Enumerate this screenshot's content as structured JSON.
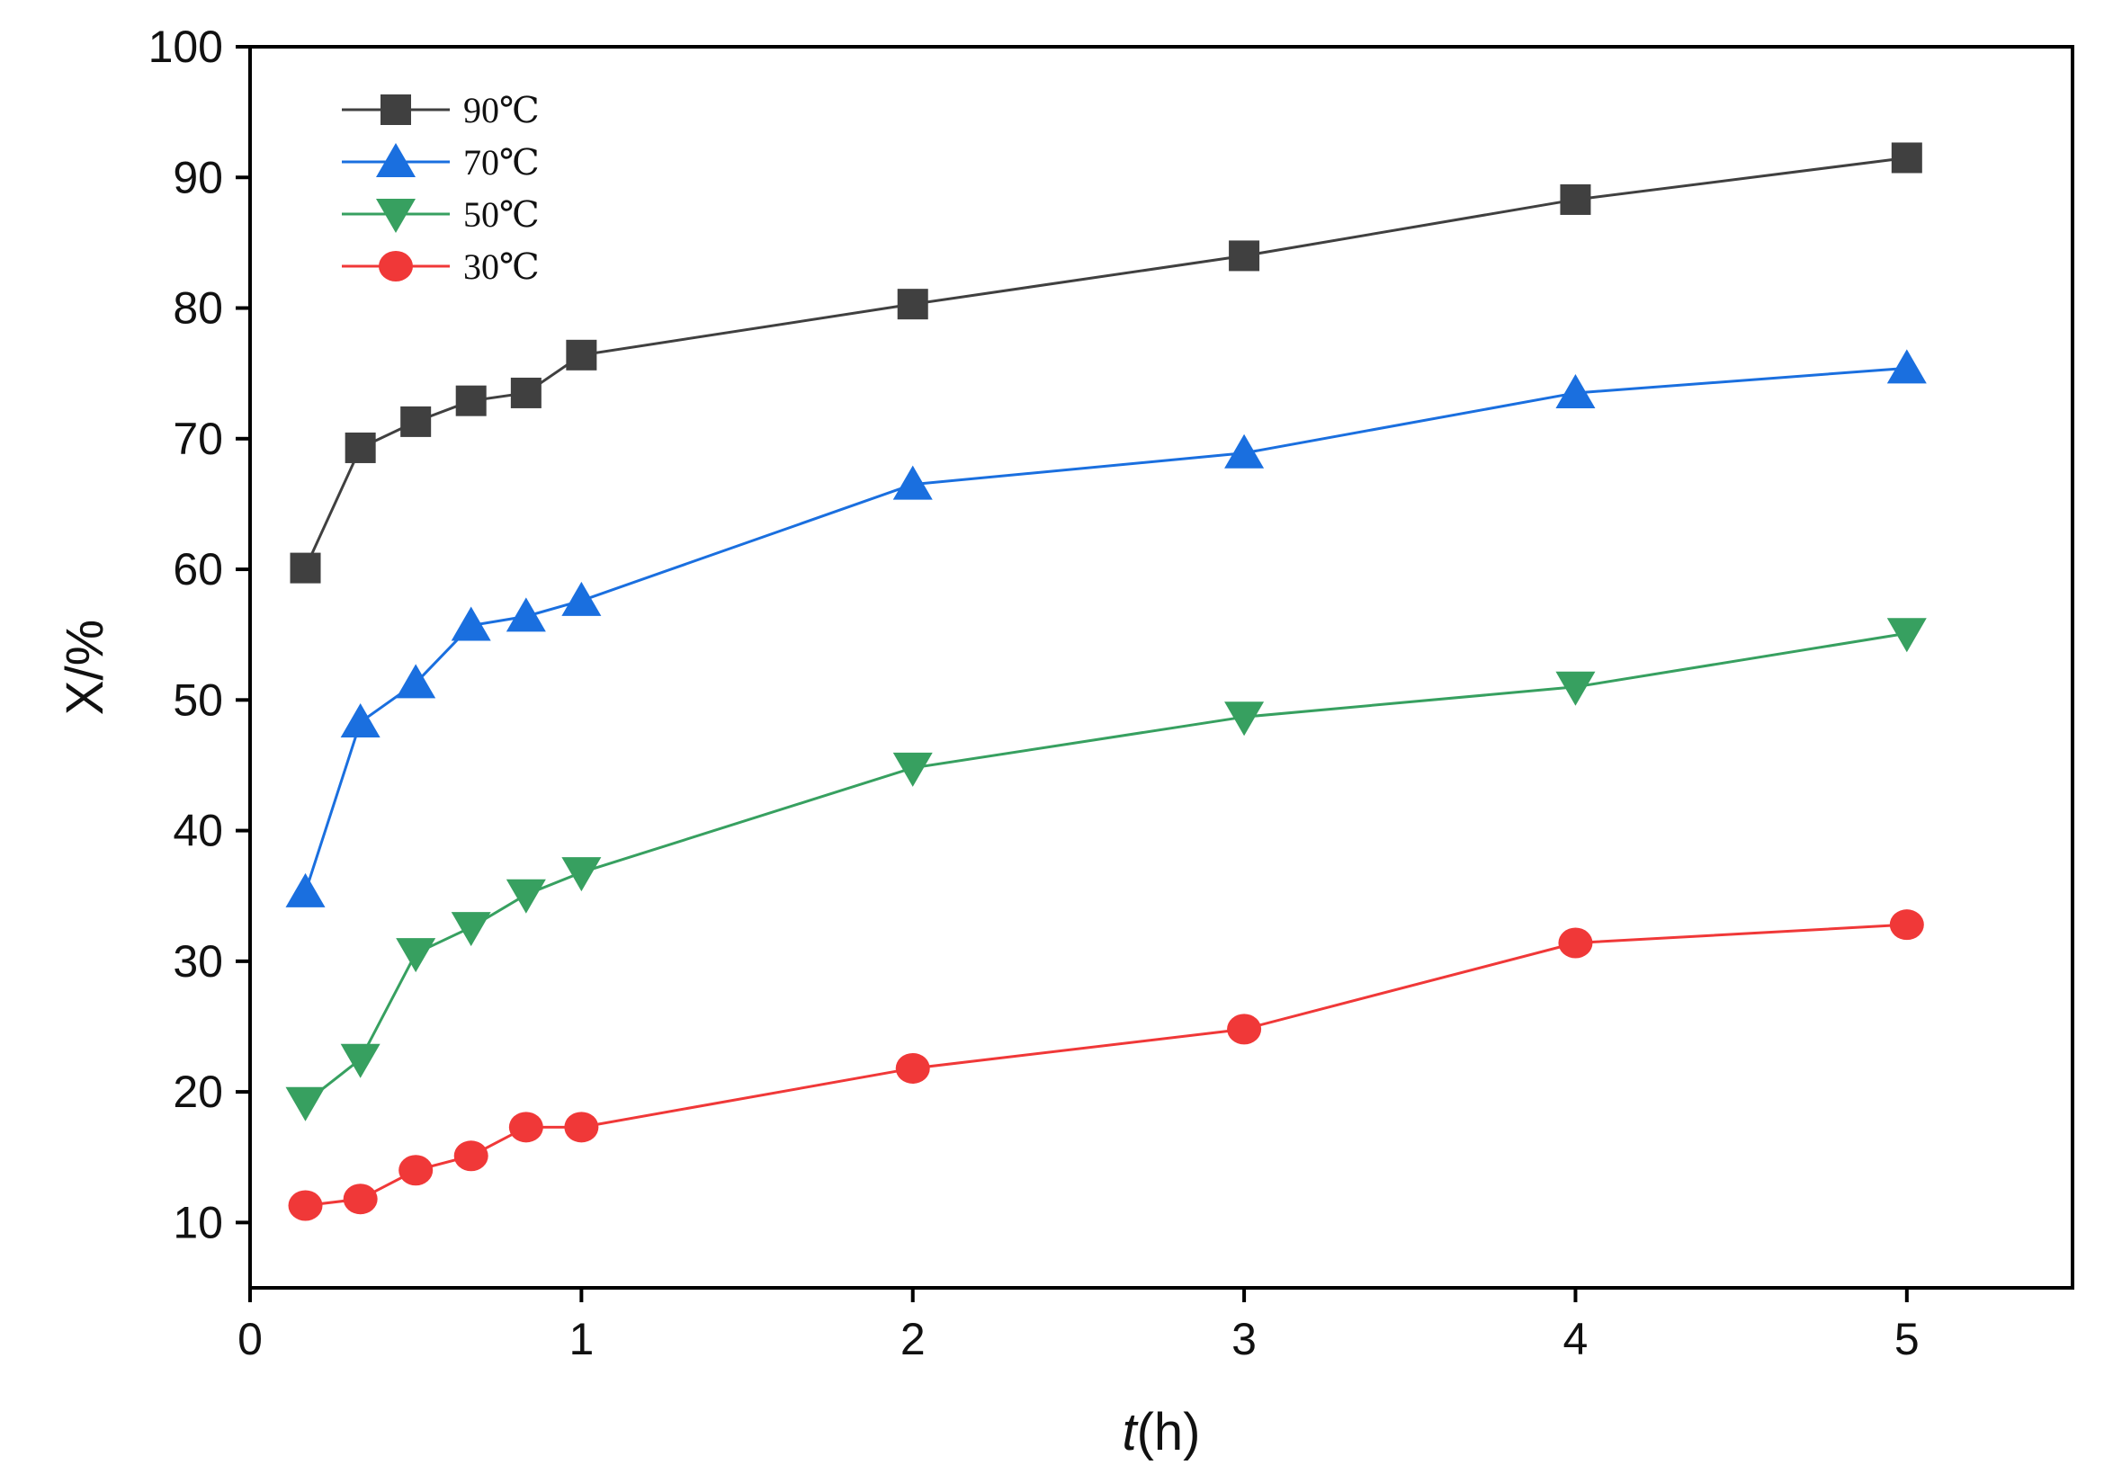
{
  "chart_data": {
    "type": "line",
    "title": "",
    "xlabel": "t(h)",
    "xlabel_italic_part": "t",
    "xlabel_rest": "(h)",
    "ylabel": "X/%",
    "xlim": [
      0,
      5.5
    ],
    "ylim": [
      5,
      100
    ],
    "xticks": [
      0,
      1,
      2,
      3,
      4,
      5
    ],
    "xtick_labels": [
      "0",
      "1",
      "2",
      "3",
      "4",
      "5"
    ],
    "yticks": [
      10,
      20,
      30,
      40,
      50,
      60,
      70,
      80,
      90,
      100
    ],
    "ytick_labels": [
      "10",
      "20",
      "30",
      "40",
      "50",
      "60",
      "70",
      "80",
      "90",
      "100"
    ],
    "grid": false,
    "legend_position": "top-left",
    "x": [
      0.167,
      0.333,
      0.5,
      0.667,
      0.833,
      1,
      2,
      3,
      4,
      5
    ],
    "series": [
      {
        "name": "90℃",
        "color": "#404040",
        "marker": "square",
        "values": [
          60.1,
          69.3,
          71.3,
          72.9,
          73.5,
          76.4,
          80.3,
          84.0,
          88.3,
          91.5
        ]
      },
      {
        "name": "70℃",
        "color": "#1a6fdf",
        "marker": "triangle-up",
        "values": [
          35.3,
          48.3,
          51.3,
          55.7,
          56.4,
          57.6,
          66.5,
          68.9,
          73.5,
          75.4
        ]
      },
      {
        "name": "50℃",
        "color": "#37a060",
        "marker": "triangle-down",
        "values": [
          19.2,
          22.5,
          30.6,
          32.6,
          35.1,
          36.8,
          44.8,
          48.7,
          51.0,
          55.1
        ]
      },
      {
        "name": "30℃",
        "color": "#f03838",
        "marker": "circle",
        "values": [
          11.3,
          11.8,
          14.0,
          15.1,
          17.3,
          17.3,
          21.8,
          24.8,
          31.4,
          32.8
        ]
      }
    ]
  }
}
